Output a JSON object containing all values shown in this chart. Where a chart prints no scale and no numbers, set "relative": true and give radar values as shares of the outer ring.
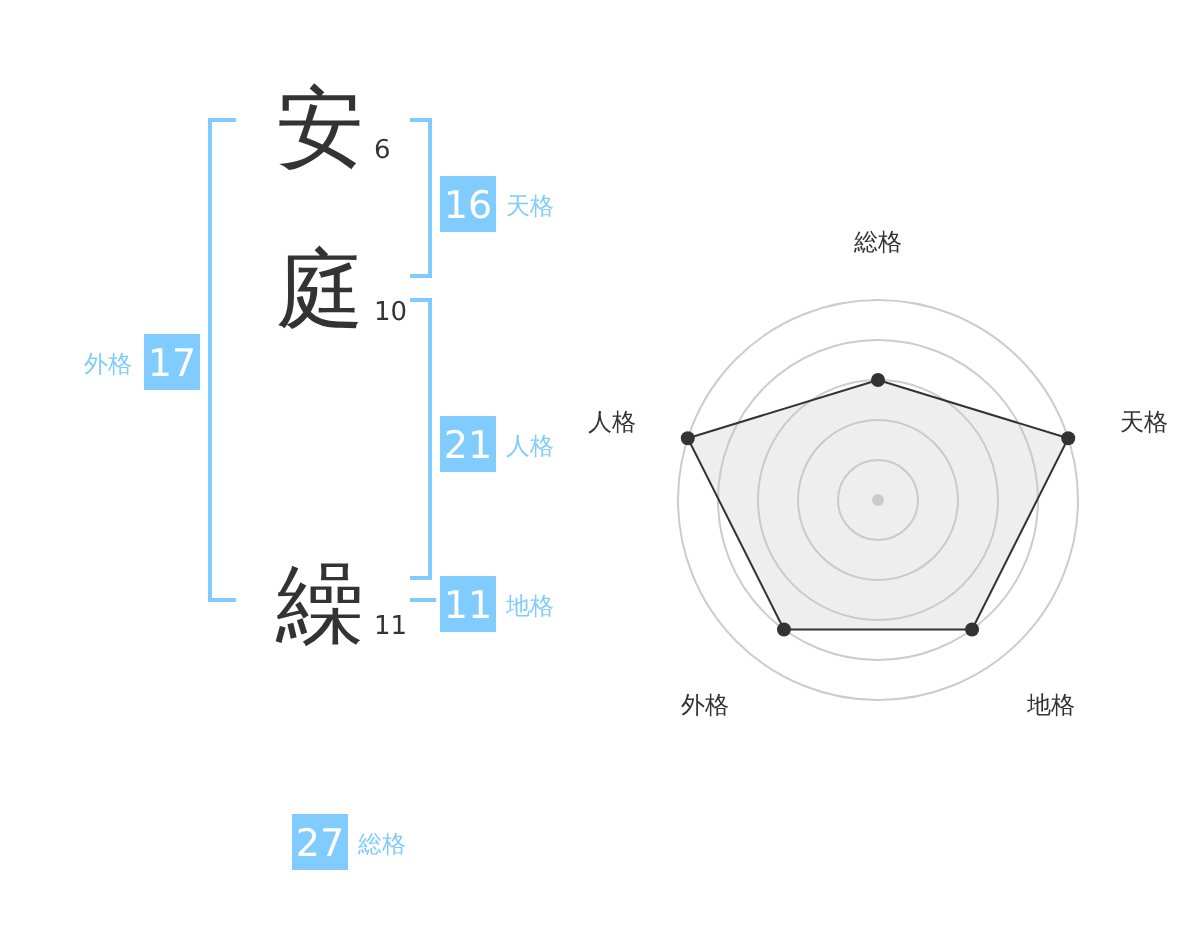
{
  "chart_data": [
    {
      "type": "other",
      "colors": [
        "#333333",
        "#80ccff"
      ],
      "annotations": [
        "安",
        "6",
        "庭",
        "10",
        "繰",
        "11",
        "16",
        "天格",
        "21",
        "人格",
        "11",
        "地格",
        "17",
        "外格",
        "27",
        "総格"
      ]
    },
    {
      "type": "radar",
      "relative": true,
      "categories": [
        "総格",
        "天格",
        "地格",
        "外格",
        "人格"
      ],
      "grid": true,
      "marker": "circle",
      "series": [
        {
          "color": "#333333",
          "values": [
            0.6,
            1,
            0.8,
            0.8,
            1
          ]
        }
      ]
    }
  ]
}
